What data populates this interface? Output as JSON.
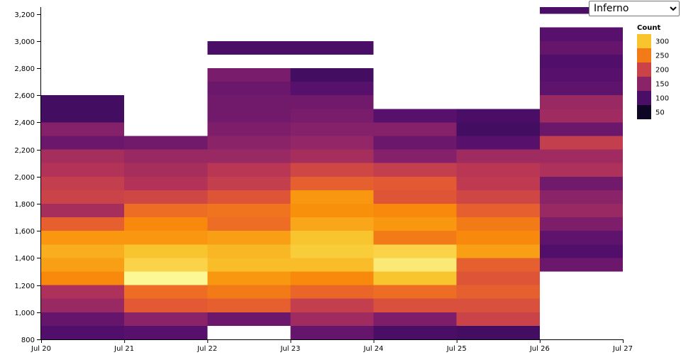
{
  "scheme_select": {
    "value": "Inferno",
    "options": [
      "Inferno"
    ]
  },
  "chart_data": {
    "type": "heatmap",
    "x_tick_labels": [
      "Jul 20",
      "Jul 21",
      "Jul 22",
      "Jul 23",
      "Jul 24",
      "Jul 25",
      "Jul 26",
      "Jul 27"
    ],
    "y_ticks": [
      800,
      1000,
      1200,
      1400,
      1600,
      1800,
      2000,
      2200,
      2400,
      2600,
      2800,
      3000,
      3200
    ],
    "y_tick_labels": [
      "800",
      "1,000",
      "1,200",
      "1,400",
      "1,600",
      "1,800",
      "2,000",
      "2,200",
      "2,400",
      "2,600",
      "2,800",
      "3,000",
      "3,200"
    ],
    "ylim": [
      800,
      3250
    ],
    "bin_size": 100,
    "color_scale": {
      "scheme": "inferno",
      "domain": [
        30,
        340
      ]
    },
    "legend": {
      "title": "Count",
      "values": [
        300,
        250,
        200,
        150,
        100,
        50
      ],
      "labels": [
        "300",
        "250",
        "200",
        "150",
        "100",
        "50"
      ],
      "placement": "top-right"
    },
    "columns": [
      {
        "day": "Jul 20",
        "bins": [
          [
            800,
            105
          ],
          [
            900,
            120
          ],
          [
            1000,
            160
          ],
          [
            1100,
            175
          ],
          [
            1200,
            260
          ],
          [
            1300,
            275
          ],
          [
            1400,
            285
          ],
          [
            1500,
            270
          ],
          [
            1600,
            230
          ],
          [
            1700,
            170
          ],
          [
            1800,
            200
          ],
          [
            1900,
            195
          ],
          [
            2000,
            180
          ],
          [
            2100,
            170
          ],
          [
            2200,
            125
          ],
          [
            2300,
            145
          ],
          [
            2400,
            95
          ],
          [
            2500,
            95
          ],
          [
            2600,
            null
          ],
          [
            2700,
            null
          ],
          [
            2800,
            null
          ],
          [
            2900,
            null
          ],
          [
            3000,
            null
          ],
          [
            3100,
            null
          ],
          [
            3200,
            null
          ]
        ]
      },
      {
        "day": "Jul 21",
        "bins": [
          [
            800,
            110
          ],
          [
            900,
            150
          ],
          [
            1000,
            225
          ],
          [
            1100,
            240
          ],
          [
            1200,
            335
          ],
          [
            1300,
            310
          ],
          [
            1400,
            300
          ],
          [
            1500,
            270
          ],
          [
            1600,
            260
          ],
          [
            1700,
            240
          ],
          [
            1800,
            205
          ],
          [
            1900,
            180
          ],
          [
            2000,
            170
          ],
          [
            2100,
            160
          ],
          [
            2200,
            130
          ],
          [
            2300,
            null
          ],
          [
            2400,
            null
          ],
          [
            2500,
            null
          ],
          [
            2600,
            null
          ],
          [
            2700,
            null
          ],
          [
            2800,
            null
          ],
          [
            2900,
            null
          ],
          [
            3000,
            null
          ],
          [
            3100,
            null
          ],
          [
            3200,
            null
          ]
        ]
      },
      {
        "day": "Jul 22",
        "bins": [
          [
            800,
            null
          ],
          [
            900,
            125
          ],
          [
            1000,
            230
          ],
          [
            1100,
            250
          ],
          [
            1200,
            270
          ],
          [
            1300,
            295
          ],
          [
            1400,
            290
          ],
          [
            1500,
            275
          ],
          [
            1600,
            240
          ],
          [
            1700,
            245
          ],
          [
            1800,
            220
          ],
          [
            1900,
            195
          ],
          [
            2000,
            185
          ],
          [
            2100,
            160
          ],
          [
            2200,
            150
          ],
          [
            2300,
            140
          ],
          [
            2400,
            130
          ],
          [
            2500,
            130
          ],
          [
            2600,
            125
          ],
          [
            2700,
            135
          ],
          [
            2800,
            null
          ],
          [
            2900,
            100
          ],
          [
            3000,
            null
          ],
          [
            3100,
            null
          ],
          [
            3200,
            null
          ]
        ]
      },
      {
        "day": "Jul 23",
        "bins": [
          [
            800,
            120
          ],
          [
            900,
            165
          ],
          [
            1000,
            195
          ],
          [
            1100,
            235
          ],
          [
            1200,
            260
          ],
          [
            1300,
            295
          ],
          [
            1400,
            305
          ],
          [
            1500,
            300
          ],
          [
            1600,
            280
          ],
          [
            1700,
            265
          ],
          [
            1800,
            270
          ],
          [
            1900,
            230
          ],
          [
            2000,
            205
          ],
          [
            2100,
            170
          ],
          [
            2200,
            155
          ],
          [
            2300,
            145
          ],
          [
            2400,
            135
          ],
          [
            2500,
            130
          ],
          [
            2600,
            110
          ],
          [
            2700,
            95
          ],
          [
            2800,
            null
          ],
          [
            2900,
            100
          ],
          [
            3000,
            null
          ],
          [
            3100,
            null
          ],
          [
            3200,
            null
          ]
        ]
      },
      {
        "day": "Jul 24",
        "bins": [
          [
            800,
            100
          ],
          [
            900,
            140
          ],
          [
            1000,
            215
          ],
          [
            1100,
            240
          ],
          [
            1200,
            300
          ],
          [
            1300,
            325
          ],
          [
            1400,
            310
          ],
          [
            1500,
            250
          ],
          [
            1600,
            270
          ],
          [
            1700,
            260
          ],
          [
            1800,
            220
          ],
          [
            1900,
            225
          ],
          [
            2000,
            195
          ],
          [
            2100,
            145
          ],
          [
            2200,
            125
          ],
          [
            2300,
            145
          ],
          [
            2400,
            110
          ],
          [
            2500,
            null
          ],
          [
            2600,
            null
          ],
          [
            2700,
            null
          ],
          [
            2800,
            null
          ],
          [
            2900,
            null
          ],
          [
            3000,
            null
          ],
          [
            3100,
            null
          ],
          [
            3200,
            null
          ]
        ]
      },
      {
        "day": "Jul 25",
        "bins": [
          [
            800,
            95
          ],
          [
            900,
            200
          ],
          [
            1000,
            215
          ],
          [
            1100,
            230
          ],
          [
            1200,
            220
          ],
          [
            1300,
            230
          ],
          [
            1400,
            275
          ],
          [
            1500,
            260
          ],
          [
            1600,
            250
          ],
          [
            1700,
            230
          ],
          [
            1800,
            205
          ],
          [
            1900,
            190
          ],
          [
            2000,
            185
          ],
          [
            2100,
            165
          ],
          [
            2200,
            110
          ],
          [
            2300,
            95
          ],
          [
            2400,
            100
          ],
          [
            2500,
            null
          ],
          [
            2600,
            null
          ],
          [
            2700,
            null
          ],
          [
            2800,
            null
          ],
          [
            2900,
            null
          ],
          [
            3000,
            null
          ],
          [
            3100,
            null
          ],
          [
            3200,
            null
          ]
        ]
      },
      {
        "day": "Jul 26",
        "bins": [
          [
            800,
            null
          ],
          [
            900,
            null
          ],
          [
            1000,
            null
          ],
          [
            1100,
            null
          ],
          [
            1200,
            null
          ],
          [
            1300,
            125
          ],
          [
            1400,
            105
          ],
          [
            1500,
            115
          ],
          [
            1600,
            140
          ],
          [
            1700,
            160
          ],
          [
            1800,
            150
          ],
          [
            1900,
            130
          ],
          [
            2000,
            175
          ],
          [
            2100,
            165
          ],
          [
            2200,
            195
          ],
          [
            2300,
            125
          ],
          [
            2400,
            165
          ],
          [
            2500,
            160
          ],
          [
            2600,
            115
          ],
          [
            2700,
            110
          ],
          [
            2800,
            105
          ],
          [
            2900,
            120
          ],
          [
            3000,
            110
          ],
          [
            3100,
            null
          ],
          [
            3200,
            100
          ]
        ]
      }
    ]
  }
}
